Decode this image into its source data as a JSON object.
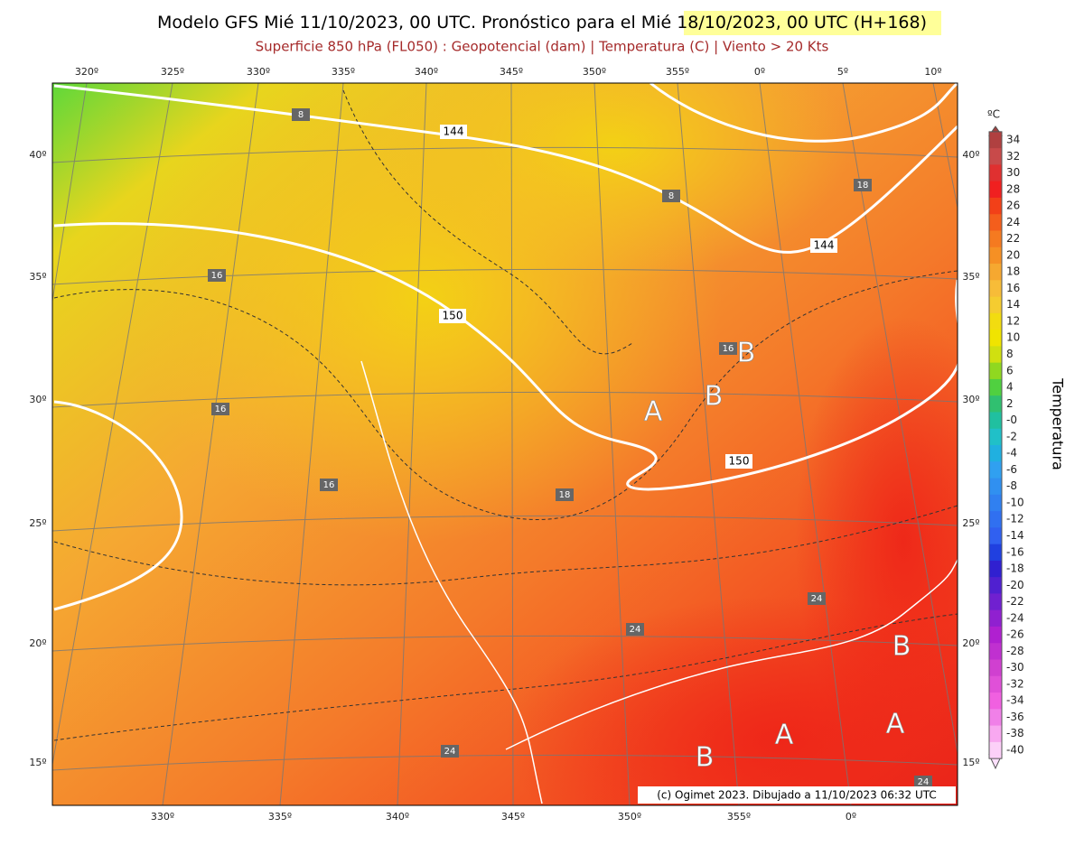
{
  "header": {
    "title_parts": [
      "Modelo GFS Mié 11/10/2023, 00 UTC. Pronóstico para el M",
      "ié 18/10/2023, 00 UTC (H+168)"
    ],
    "subtitle": "Superficie 850 hPa (FL050) : Geopotencial (dam) | Temperatura (C) | Viento > 20 Kts"
  },
  "map": {
    "lon_top": [
      "320º",
      "325º",
      "330º",
      "335º",
      "340º",
      "345º",
      "350º",
      "355º",
      "0º",
      "5º",
      "10º"
    ],
    "lon_bottom": [
      "330º",
      "335º",
      "340º",
      "345º",
      "350º",
      "355º",
      "0º"
    ],
    "lat_left": [
      "40º",
      "35º",
      "30º",
      "25º",
      "20º",
      "15º"
    ],
    "lat_right": [
      "40º",
      "35º",
      "30º",
      "25º",
      "20º",
      "15º"
    ],
    "geopotential_labels": [
      "144",
      "150",
      "144",
      "150"
    ],
    "temperature_labels": [
      "8",
      "8",
      "18",
      "16",
      "16",
      "16",
      "18",
      "16",
      "24",
      "24",
      "24",
      "24"
    ],
    "pressure_centers": [
      "B",
      "A",
      "B",
      "B",
      "A",
      "A",
      "B"
    ],
    "credit": "(c) Ogimet 2023. Dibujado a 11/10/2023 06:32 UTC"
  },
  "legend": {
    "unit": "ºC",
    "title": "Temperatura",
    "labels": [
      "34",
      "32",
      "30",
      "28",
      "26",
      "24",
      "22",
      "20",
      "18",
      "16",
      "14",
      "12",
      "10",
      "8",
      "6",
      "4",
      "2",
      "-0",
      "-2",
      "-4",
      "-6",
      "-8",
      "-10",
      "-12",
      "-14",
      "-16",
      "-18",
      "-20",
      "-22",
      "-24",
      "-26",
      "-28",
      "-30",
      "-32",
      "-34",
      "-36",
      "-38",
      "-40"
    ]
  }
}
